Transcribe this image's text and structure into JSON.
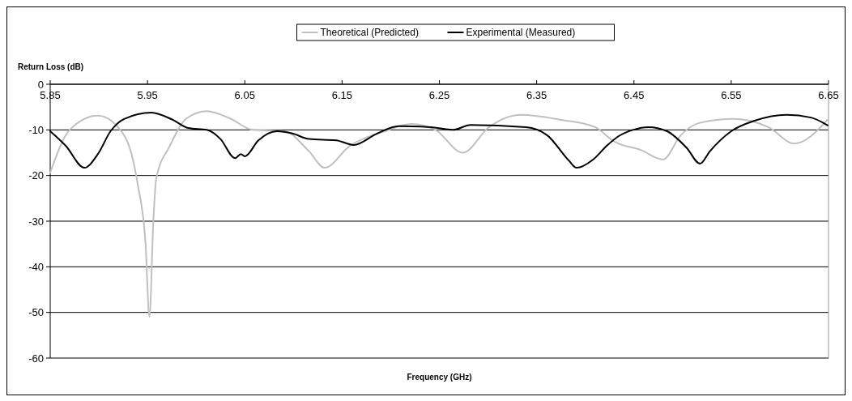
{
  "chart_data": {
    "type": "line",
    "ylabel": "Return Loss (dB)",
    "xlabel": "Frequency (GHz)",
    "xlim": [
      5.85,
      6.65
    ],
    "xticks": [
      5.85,
      5.95,
      6.05,
      6.15,
      6.25,
      6.35,
      6.45,
      6.55,
      6.65
    ],
    "ylim": [
      -60,
      0
    ],
    "yticks": [
      0,
      -10,
      -20,
      -30,
      -40,
      -50,
      -60
    ],
    "grid": "y",
    "legend": "top",
    "marker": "none",
    "line_style": "solid",
    "series": [
      {
        "name": "Theoretical (Predicted)",
        "color": "#c0c0c0",
        "x": [
          5.85,
          5.87,
          5.899,
          5.926,
          5.94,
          5.948,
          5.952,
          5.956,
          5.959,
          5.973,
          5.99,
          6.011,
          6.035,
          6.058,
          6.091,
          6.116,
          6.132,
          6.158,
          6.194,
          6.221,
          6.246,
          6.274,
          6.301,
          6.334,
          6.375,
          6.41,
          6.43,
          6.457,
          6.48,
          6.498,
          6.517,
          6.553,
          6.588,
          6.615,
          6.649
        ],
        "values": [
          -19.4,
          -10,
          -6.9,
          -11.2,
          -22,
          -35,
          -51,
          -30,
          -20.6,
          -13.5,
          -7.5,
          -5.9,
          -7.5,
          -10,
          -10.3,
          -14.7,
          -18.3,
          -13.5,
          -10.3,
          -8.7,
          -10,
          -15,
          -9.4,
          -6.7,
          -7.8,
          -9.4,
          -12.6,
          -14.4,
          -16.5,
          -11.2,
          -8.5,
          -7.6,
          -9.4,
          -13,
          -7.8
        ]
      },
      {
        "name": "Experimental (Measured)",
        "color": "#000000",
        "x": [
          5.85,
          5.866,
          5.885,
          5.899,
          5.912,
          5.926,
          5.954,
          5.976,
          5.992,
          6.011,
          6.025,
          6.04,
          6.046,
          6.05,
          6.064,
          6.083,
          6.099,
          6.116,
          6.144,
          6.162,
          6.186,
          6.208,
          6.241,
          6.264,
          6.282,
          6.339,
          6.361,
          6.383,
          6.391,
          6.408,
          6.422,
          6.434,
          6.449,
          6.465,
          6.484,
          6.504,
          6.518,
          6.528,
          6.55,
          6.574,
          6.607,
          6.632,
          6.649
        ],
        "values": [
          -10.3,
          -13.5,
          -18.3,
          -15.3,
          -10.3,
          -7.6,
          -6.2,
          -7.8,
          -9.6,
          -10,
          -12,
          -16.2,
          -15.3,
          -15.8,
          -12.3,
          -10.3,
          -10.8,
          -12,
          -12.3,
          -13.3,
          -10.8,
          -9.2,
          -9.4,
          -10,
          -8.9,
          -9.4,
          -11.2,
          -16.7,
          -18.3,
          -16.5,
          -13.5,
          -11.4,
          -10,
          -9.4,
          -10.3,
          -13.9,
          -17.4,
          -14.7,
          -10.3,
          -8,
          -6.7,
          -7.3,
          -9
        ]
      }
    ]
  }
}
